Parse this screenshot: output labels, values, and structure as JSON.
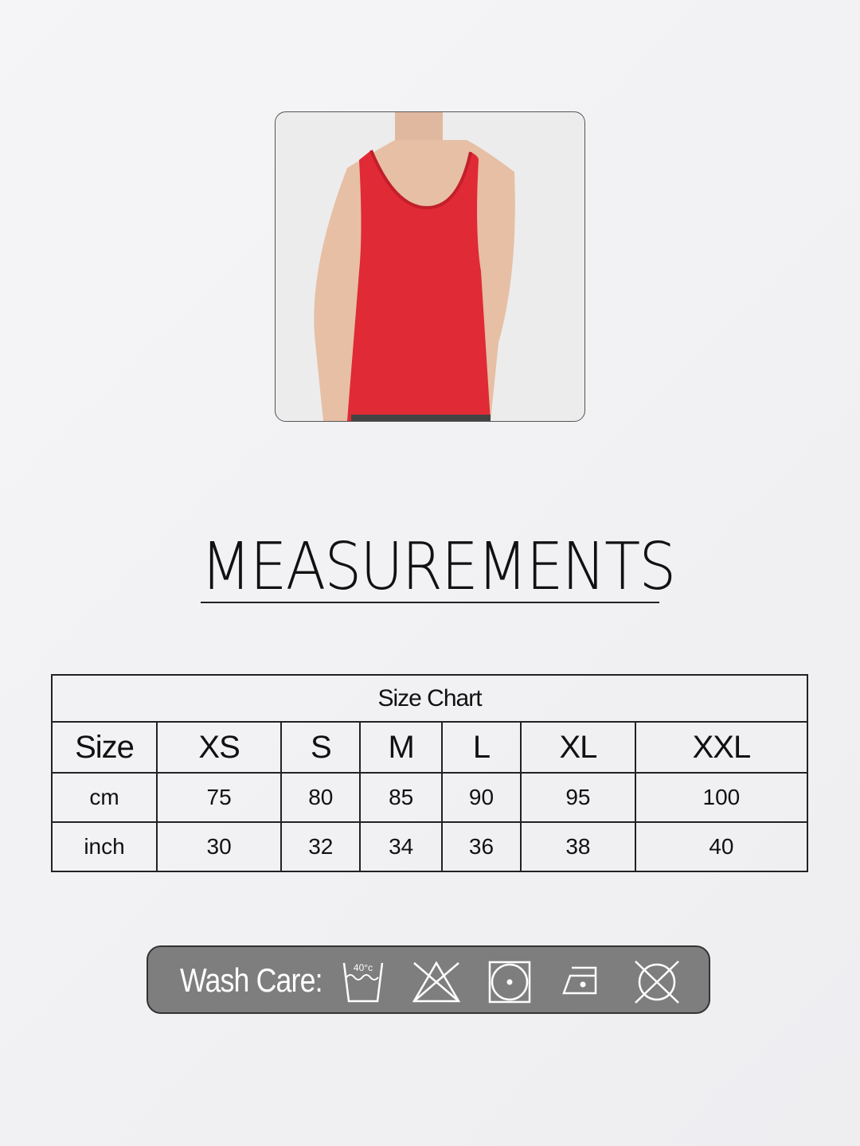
{
  "title": "MEASUREMENTS",
  "size_chart": {
    "caption": "Size Chart",
    "header": [
      "Size",
      "XS",
      "S",
      "M",
      "L",
      "XL",
      "XXL"
    ],
    "rows": [
      [
        "cm",
        "75",
        "80",
        "85",
        "90",
        "95",
        "100"
      ],
      [
        "inch",
        "30",
        "32",
        "34",
        "36",
        "38",
        "40"
      ]
    ]
  },
  "wash_care": {
    "label": "Wash Care:",
    "wash_temp": "40°c",
    "icons": [
      "wash-40-icon",
      "do-not-bleach-icon",
      "tumble-dry-low-icon",
      "iron-low-icon",
      "do-not-dry-clean-icon"
    ]
  },
  "colors": {
    "tank": "#e02a35",
    "panel": "#7e7e7e"
  }
}
